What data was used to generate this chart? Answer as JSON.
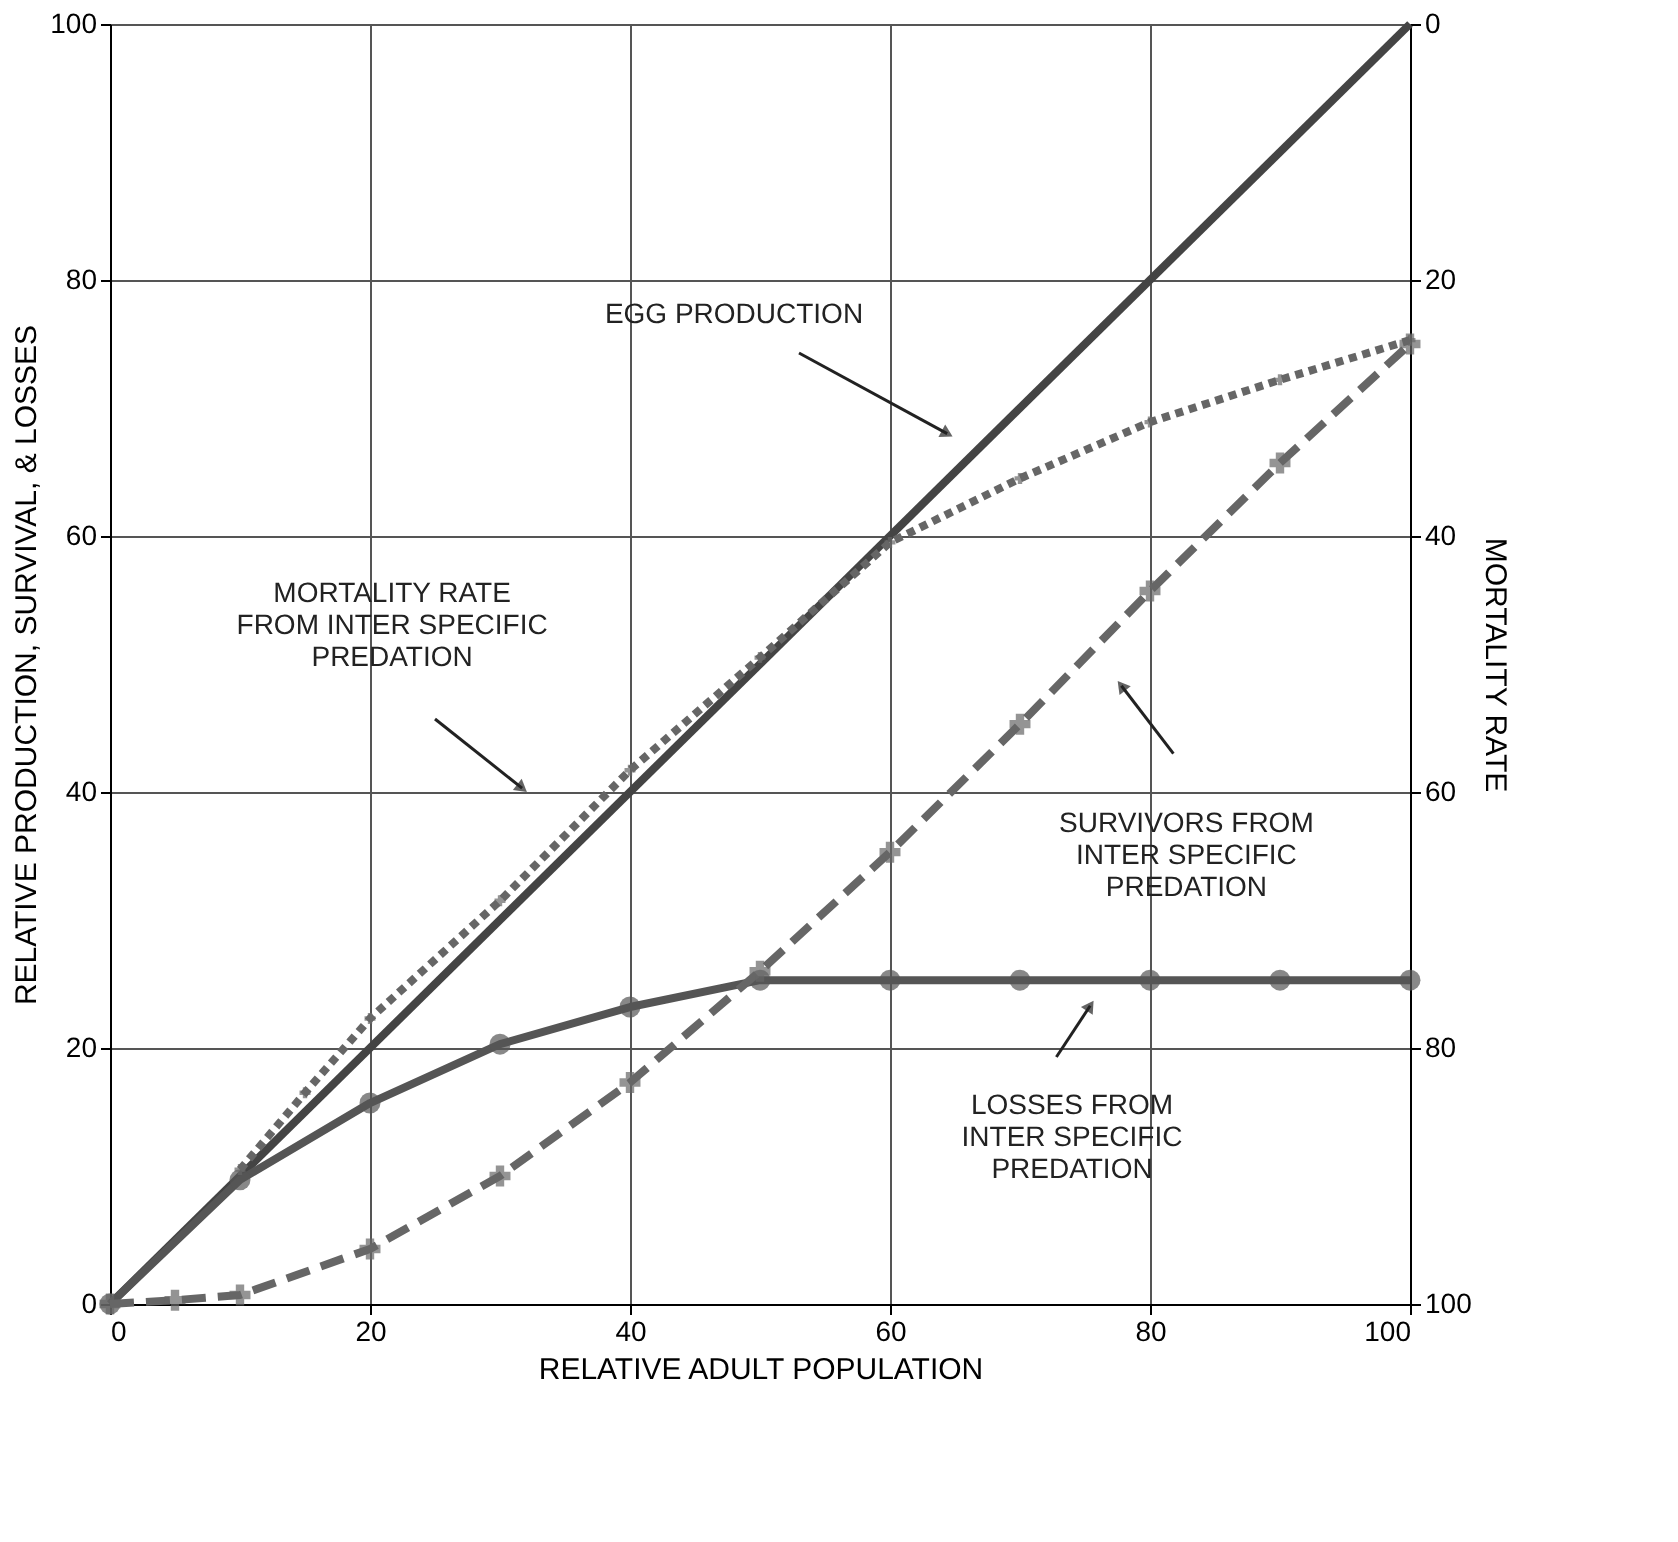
{
  "chart_data": {
    "type": "line",
    "xlabel": "RELATIVE ADULT POPULATION",
    "ylabel": "RELATIVE PRODUCTION, SURVIVAL, & LOSSES",
    "y2label": "MORTALITY RATE",
    "xlim": [
      0,
      100
    ],
    "xticks": [
      0,
      20,
      40,
      60,
      80,
      100
    ],
    "ylim": [
      0,
      100
    ],
    "yticks": [
      0,
      20,
      40,
      60,
      80,
      100
    ],
    "y2lim": [
      100,
      0
    ],
    "y2ticks": [
      0,
      20,
      40,
      60,
      80,
      100
    ],
    "grid": true,
    "series": [
      {
        "color": "#444444",
        "x": [
          0,
          100
        ],
        "values": [
          0,
          100
        ],
        "line_style": "solid",
        "marker": "none"
      },
      {
        "color": "#555555",
        "x": [
          0,
          10,
          20,
          30,
          40,
          50,
          60,
          70,
          80,
          90,
          100
        ],
        "values": [
          0,
          9.7,
          15.7,
          20.3,
          23.2,
          25.3,
          25.3,
          25.3,
          25.3,
          25.3,
          25.3
        ],
        "line_style": "solid",
        "marker": "circle"
      },
      {
        "color": "#666666",
        "x": [
          0,
          5,
          10,
          20,
          30,
          40,
          50,
          60,
          70,
          80,
          90,
          100
        ],
        "values": [
          0,
          0.3,
          0.7,
          4.3,
          10,
          17.3,
          26,
          35.3,
          45.3,
          55.7,
          65.7,
          75
        ],
        "line_style": "dashed",
        "marker": "cross"
      },
      {
        "color": "#666666",
        "axis": "y2",
        "x": [
          10,
          15,
          20,
          30,
          40,
          50,
          60,
          70,
          80,
          90,
          100
        ],
        "values": [
          89.5,
          83.5,
          77.7,
          68.5,
          58.3,
          49.5,
          40.5,
          35.5,
          31.1,
          27.8,
          24.7
        ],
        "line_style": "dotted",
        "marker": "cross"
      }
    ],
    "annotations": [
      "EGG PRODUCTION",
      "MORTALITY RATE\nFROM INTER SPECIFIC\nPREDATION",
      "SURVIVORS FROM\nINTER SPECIFIC\nPREDATION",
      "LOSSES FROM\nINTER SPECIFIC\nPREDATION"
    ]
  }
}
